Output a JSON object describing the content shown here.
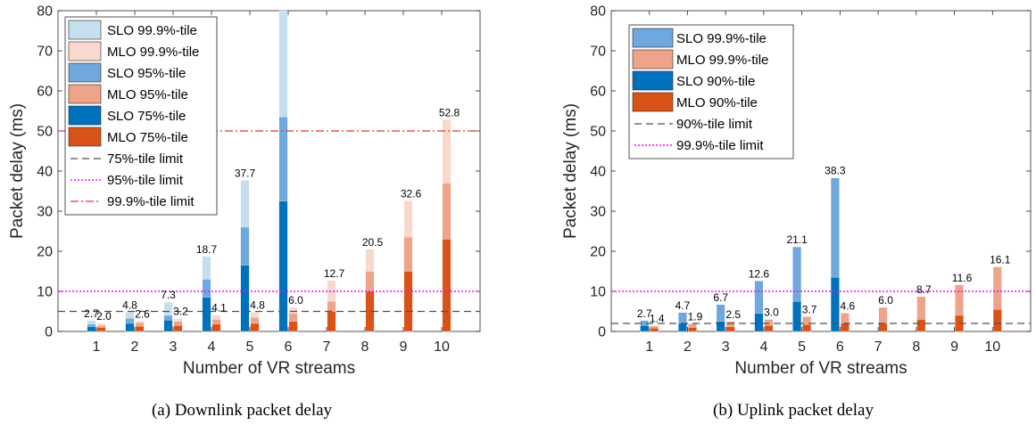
{
  "colors": {
    "slo_low": "#0072BD",
    "slo_mid": "#6FA8DC",
    "slo_high": "#C6DFEF",
    "mlo_low": "#D95319",
    "mlo_mid": "#EDA48B",
    "mlo_high": "#F8D9CE",
    "limit_dashed": "#505050",
    "limit_dotted": "#FF00FF",
    "limit_dashdot": "#E8303A"
  },
  "chart_data": [
    {
      "type": "bar",
      "caption": "(a) Downlink packet delay",
      "xlabel": "Number of VR streams",
      "ylabel": "Packet delay (ms)",
      "ylim": [
        0,
        80
      ],
      "yticks": [
        0,
        10,
        20,
        30,
        40,
        50,
        60,
        70,
        80
      ],
      "categories": [
        "1",
        "2",
        "3",
        "4",
        "5",
        "6",
        "7",
        "8",
        "9",
        "10"
      ],
      "legend_position": "top-left",
      "series": [
        {
          "name": "SLO 99.9%-tile",
          "group": "SLO",
          "level": "high",
          "values": [
            2.7,
            4.8,
            7.3,
            18.7,
            37.7,
            80,
            0,
            0,
            0,
            0
          ]
        },
        {
          "name": "MLO 99.9%-tile",
          "group": "MLO",
          "level": "high",
          "values": [
            2.0,
            2.6,
            3.2,
            4.1,
            4.8,
            6.0,
            12.7,
            20.5,
            32.6,
            52.8
          ]
        },
        {
          "name": "SLO 95%-tile",
          "group": "SLO",
          "level": "mid",
          "values": [
            1.8,
            3.3,
            4.0,
            13.0,
            26.0,
            53.5,
            0,
            0,
            0,
            0
          ]
        },
        {
          "name": "MLO 95%-tile",
          "group": "MLO",
          "level": "mid",
          "values": [
            1.5,
            2.2,
            2.5,
            3.0,
            3.5,
            4.5,
            7.5,
            15.0,
            23.5,
            37.0
          ]
        },
        {
          "name": "SLO 75%-tile",
          "group": "SLO",
          "level": "low",
          "values": [
            1.2,
            2.0,
            2.8,
            8.5,
            16.5,
            32.5,
            0,
            0,
            0,
            0
          ]
        },
        {
          "name": "MLO 75%-tile",
          "group": "MLO",
          "level": "low",
          "values": [
            1.0,
            1.3,
            1.5,
            1.8,
            2.0,
            2.5,
            5.0,
            10.0,
            15.0,
            23.0
          ]
        }
      ],
      "data_labels": [
        {
          "x": "1",
          "group": "SLO",
          "text": "2.7"
        },
        {
          "x": "1",
          "group": "MLO",
          "text": "2.0"
        },
        {
          "x": "2",
          "group": "SLO",
          "text": "4.8"
        },
        {
          "x": "2",
          "group": "MLO",
          "text": "2.6"
        },
        {
          "x": "3",
          "group": "SLO",
          "text": "7.3"
        },
        {
          "x": "3",
          "group": "MLO",
          "text": "3.2"
        },
        {
          "x": "4",
          "group": "SLO",
          "text": "18.7"
        },
        {
          "x": "4",
          "group": "MLO",
          "text": "4.1"
        },
        {
          "x": "5",
          "group": "SLO",
          "text": "37.7"
        },
        {
          "x": "5",
          "group": "MLO",
          "text": "4.8"
        },
        {
          "x": "6",
          "group": "MLO",
          "text": "6.0"
        },
        {
          "x": "7",
          "group": "MLO",
          "text": "12.7"
        },
        {
          "x": "8",
          "group": "MLO",
          "text": "20.5"
        },
        {
          "x": "9",
          "group": "MLO",
          "text": "32.6"
        },
        {
          "x": "10",
          "group": "MLO",
          "text": "52.8"
        }
      ],
      "limits": [
        {
          "name": "75%-tile limit",
          "value": 5,
          "style": "dashed"
        },
        {
          "name": "95%-tile limit",
          "value": 10,
          "style": "dotted"
        },
        {
          "name": "99.9%-tile limit",
          "value": 50,
          "style": "dashdot"
        }
      ]
    },
    {
      "type": "bar",
      "caption": "(b) Uplink packet delay",
      "xlabel": "Number of VR streams",
      "ylabel": "Packet delay (ms)",
      "ylim": [
        0,
        80
      ],
      "yticks": [
        0,
        10,
        20,
        30,
        40,
        50,
        60,
        70,
        80
      ],
      "categories": [
        "1",
        "2",
        "3",
        "4",
        "5",
        "6",
        "7",
        "8",
        "9",
        "10"
      ],
      "legend_position": "top-left",
      "series": [
        {
          "name": "SLO 99.9%-tile",
          "group": "SLO",
          "level": "mid",
          "values": [
            2.7,
            4.7,
            6.7,
            12.6,
            21.1,
            38.3,
            0,
            0,
            0,
            0
          ]
        },
        {
          "name": "MLO 99.9%-tile",
          "group": "MLO",
          "level": "mid",
          "values": [
            1.4,
            1.9,
            2.5,
            3.0,
            3.7,
            4.6,
            6.0,
            8.7,
            11.6,
            16.1
          ]
        },
        {
          "name": "SLO 90%-tile",
          "group": "SLO",
          "level": "low",
          "values": [
            1.5,
            2.0,
            2.5,
            4.5,
            7.5,
            13.5,
            0,
            0,
            0,
            0
          ]
        },
        {
          "name": "MLO 90%-tile",
          "group": "MLO",
          "level": "low",
          "values": [
            0.8,
            1.0,
            1.2,
            1.5,
            1.7,
            2.0,
            2.0,
            3.0,
            4.0,
            5.5
          ]
        }
      ],
      "data_labels": [
        {
          "x": "1",
          "group": "SLO",
          "text": "2.7"
        },
        {
          "x": "1",
          "group": "MLO",
          "text": "1.4"
        },
        {
          "x": "2",
          "group": "SLO",
          "text": "4.7"
        },
        {
          "x": "2",
          "group": "MLO",
          "text": "1.9"
        },
        {
          "x": "3",
          "group": "SLO",
          "text": "6.7"
        },
        {
          "x": "3",
          "group": "MLO",
          "text": "2.5"
        },
        {
          "x": "4",
          "group": "SLO",
          "text": "12.6"
        },
        {
          "x": "4",
          "group": "MLO",
          "text": "3.0"
        },
        {
          "x": "5",
          "group": "SLO",
          "text": "21.1"
        },
        {
          "x": "5",
          "group": "MLO",
          "text": "3.7"
        },
        {
          "x": "6",
          "group": "SLO",
          "text": "38.3"
        },
        {
          "x": "6",
          "group": "MLO",
          "text": "4.6"
        },
        {
          "x": "7",
          "group": "MLO",
          "text": "6.0"
        },
        {
          "x": "8",
          "group": "MLO",
          "text": "8.7"
        },
        {
          "x": "9",
          "group": "MLO",
          "text": "11.6"
        },
        {
          "x": "10",
          "group": "MLO",
          "text": "16.1"
        }
      ],
      "limits": [
        {
          "name": "90%-tile limit",
          "value": 2,
          "style": "dashed"
        },
        {
          "name": "99.9%-tile limit",
          "value": 10,
          "style": "dotted"
        }
      ]
    }
  ]
}
